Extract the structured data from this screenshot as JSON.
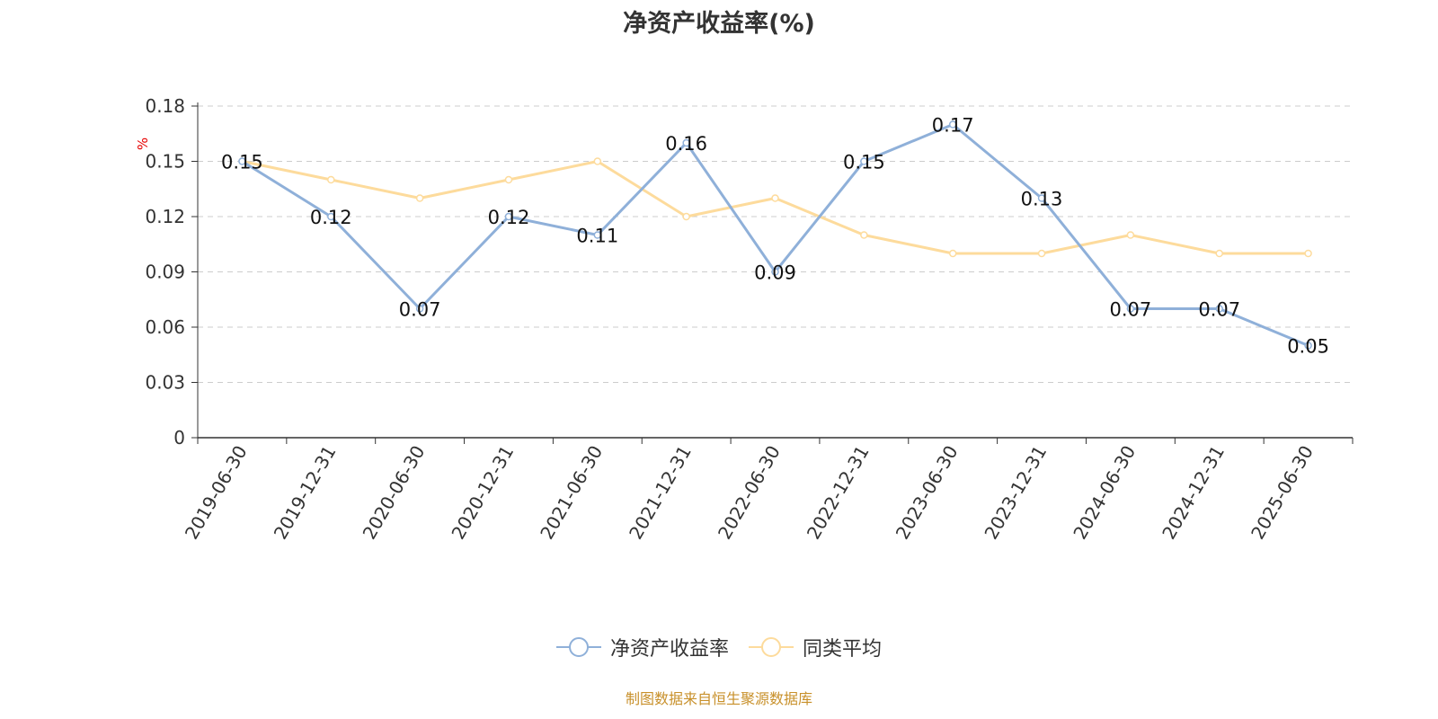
{
  "title": "净资产收益率(%)",
  "source": "制图数据来自恒生聚源数据库",
  "colors": {
    "series_main": "#8fb0d9",
    "series_avg": "#fddb9c",
    "unit": "#e60000",
    "source": "#c8902a"
  },
  "chart_data": {
    "type": "line",
    "title": "净资产收益率(%)",
    "ylabel": "%",
    "ylim": [
      0,
      0.18
    ],
    "yticks": [
      "0",
      "0.03",
      "0.06",
      "0.09",
      "0.12",
      "0.15",
      "0.18"
    ],
    "grid": true,
    "legend_position": "bottom-center",
    "categories": [
      "2019-06-30",
      "2019-12-31",
      "2020-06-30",
      "2020-12-31",
      "2021-06-30",
      "2021-12-31",
      "2022-06-30",
      "2022-12-31",
      "2023-06-30",
      "2023-12-31",
      "2024-06-30",
      "2024-12-31",
      "2025-06-30"
    ],
    "series": [
      {
        "name": "净资产收益率",
        "color": "#8fb0d9",
        "show_labels": true,
        "values": [
          0.15,
          0.12,
          0.07,
          0.12,
          0.11,
          0.16,
          0.09,
          0.15,
          0.17,
          0.13,
          0.07,
          0.07,
          0.05
        ],
        "labels": [
          "0.15",
          "0.12",
          "0.07",
          "0.12",
          "0.11",
          "0.16",
          "0.09",
          "0.15",
          "0.17",
          "0.13",
          "0.07",
          "0.07",
          "0.05"
        ]
      },
      {
        "name": "同类平均",
        "color": "#fddb9c",
        "show_labels": false,
        "values": [
          0.15,
          0.14,
          0.13,
          0.14,
          0.15,
          0.12,
          0.13,
          0.11,
          0.1,
          0.1,
          0.11,
          0.1,
          0.1
        ]
      }
    ]
  }
}
